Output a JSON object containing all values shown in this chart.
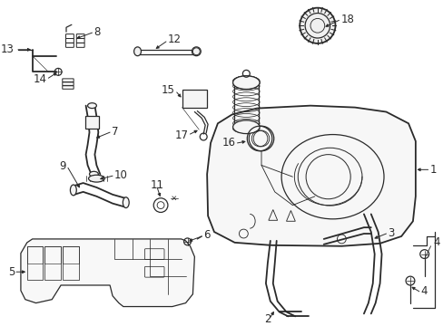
{
  "background_color": "#ffffff",
  "line_color": "#2a2a2a",
  "label_fontsize": 8.5,
  "fig_width": 4.89,
  "fig_height": 3.6,
  "dpi": 100
}
